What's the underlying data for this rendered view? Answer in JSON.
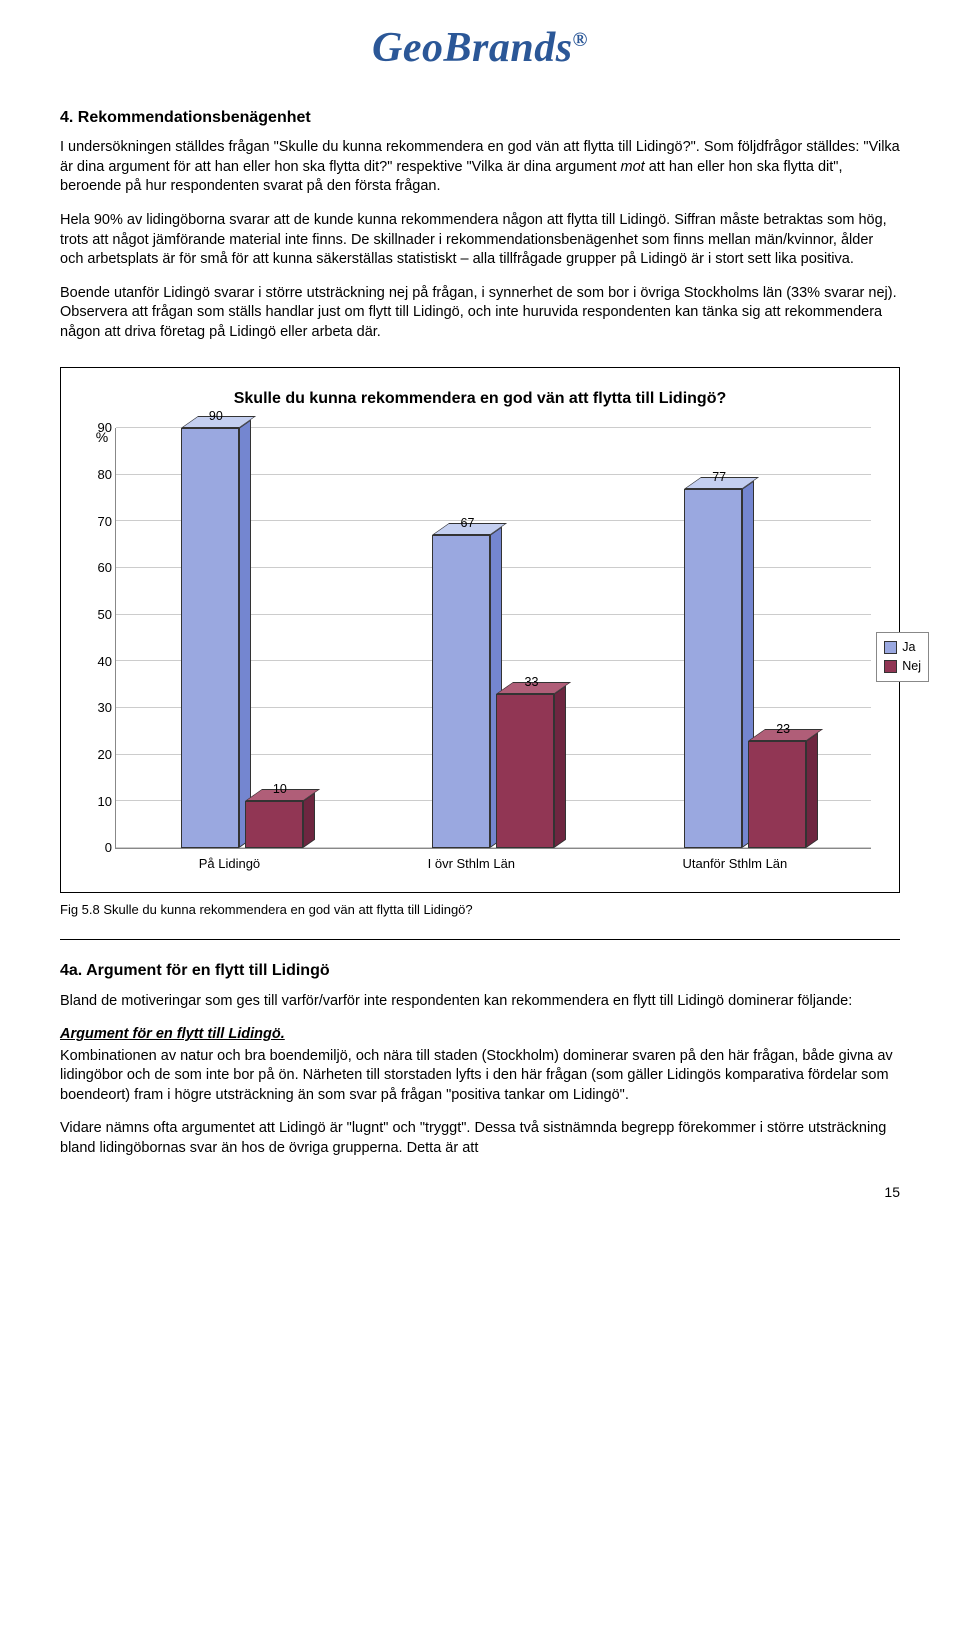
{
  "logo": {
    "text": "GeoBrands",
    "reg": "®",
    "color": "#2b5797"
  },
  "section4": {
    "heading": "4. Rekommendationsbenägenhet",
    "p1a": "I undersökningen ställdes frågan \"Skulle du kunna rekommendera en god vän att flytta till Lidingö?\". Som följdfrågor ställdes: \"Vilka är dina argument för att han eller hon ska flytta dit?\" respektive \"Vilka är dina argument ",
    "p1_em": "mot",
    "p1b": " att han eller hon ska flytta dit\", beroende på hur respondenten svarat på den första frågan.",
    "p2": "Hela 90% av lidingöborna svarar att de kunde kunna rekommendera någon att flytta till Lidingö. Siffran måste betraktas som hög, trots att något jämförande material inte finns. De skillnader i rekommendationsbenägenhet som finns mellan män/kvinnor, ålder och arbetsplats är för små för att kunna säkerställas statistiskt – alla tillfrågade grupper på Lidingö är i stort sett lika positiva.",
    "p3": "Boende utanför Lidingö svarar i större utsträckning nej på frågan, i synnerhet de som bor i övriga Stockholms län (33% svarar nej). Observera att frågan som ställs handlar just om flytt till Lidingö, och inte huruvida respondenten kan tänka sig att rekommendera någon att driva företag på Lidingö eller arbeta där."
  },
  "chart": {
    "title": "Skulle du kunna rekommendera en god vän att flytta till Lidingö?",
    "ylabel": "%",
    "ymax": 90,
    "yticks": [
      0,
      10,
      20,
      30,
      40,
      50,
      60,
      70,
      80,
      90
    ],
    "categories": [
      "På Lidingö",
      "I övr Sthlm Län",
      "Utanför Sthlm Län"
    ],
    "series": [
      {
        "name": "Ja",
        "color_front": "#9aa8e0",
        "color_top": "#c4cff0",
        "color_side": "#7486d0"
      },
      {
        "name": "Nej",
        "color_front": "#913654",
        "color_top": "#b05e78",
        "color_side": "#6e2640"
      }
    ],
    "values": {
      "ja": [
        90,
        67,
        77
      ],
      "nej": [
        10,
        33,
        23
      ]
    },
    "legend_label_ja": "Ja",
    "legend_label_nej": "Nej",
    "caption": "Fig 5.8 Skulle du kunna rekommendera en god vän att flytta till Lidingö?"
  },
  "section4a": {
    "heading": "4a. Argument för en flytt till Lidingö",
    "intro": "Bland de motiveringar som ges till varför/varför inte respondenten kan rekommendera en flytt till Lidingö dominerar följande:",
    "sub": "Argument för en flytt till Lidingö.",
    "p1": "Kombinationen av natur och bra boendemiljö, och nära till staden (Stockholm) dominerar svaren på den här frågan, både givna av lidingöbor och de som inte bor på ön. Närheten till storstaden lyfts i den här frågan (som gäller Lidingös komparativa fördelar som boendeort) fram i högre utsträckning än som svar på frågan \"positiva tankar om Lidingö\".",
    "p2": "Vidare nämns ofta argumentet att Lidingö är \"lugnt\" och \"tryggt\". Dessa två sistnämnda begrepp förekommer i större utsträckning bland lidingöbornas svar än hos de övriga grupperna. Detta är att"
  },
  "pagenum": "15"
}
